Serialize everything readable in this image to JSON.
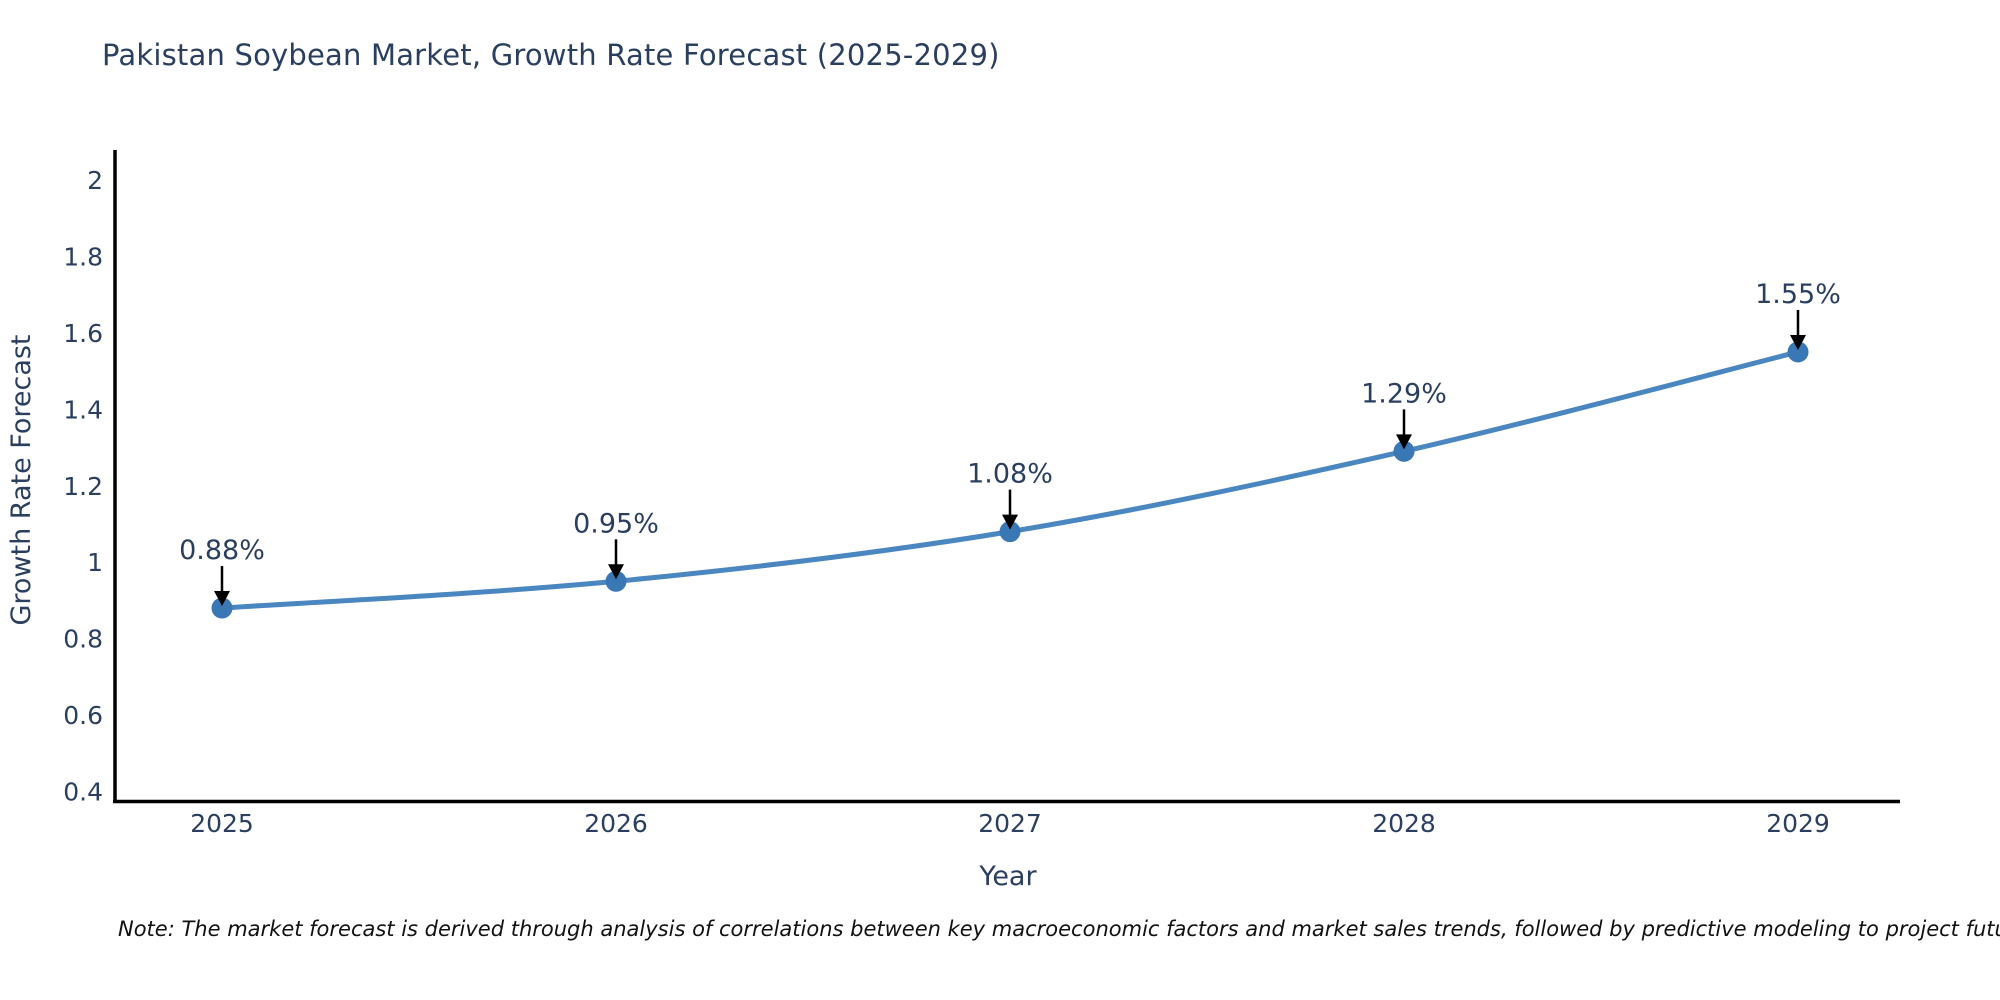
{
  "page": {
    "background": "#ffffff"
  },
  "title": {
    "text": "Pakistan Soybean Market, Growth Rate Forecast (2025-2029)",
    "color": "#2a3f5f"
  },
  "note": {
    "text": "Note: The market forecast is derived through analysis of correlations between key macroeconomic factors and market sales trends, followed by predictive modeling to project future sales"
  },
  "chart_data": {
    "type": "line",
    "title": "Pakistan Soybean Market, Growth Rate Forecast (2025-2029)",
    "x": [
      "2025",
      "2026",
      "2027",
      "2028",
      "2029"
    ],
    "values": [
      0.88,
      0.95,
      1.08,
      1.29,
      1.55
    ],
    "point_labels": [
      "0.88%",
      "0.95%",
      "1.08%",
      "1.29%",
      "1.55%"
    ],
    "xlabel": "Year",
    "ylabel": "Growth Rate Forecast",
    "ylim": [
      0.4,
      2
    ],
    "yticks": [
      0.4,
      0.6,
      0.8,
      1,
      1.2,
      1.4,
      1.6,
      1.8,
      2
    ],
    "grid": false,
    "legend": "none",
    "colors": {
      "line": "#4a86bf",
      "marker": "#3a78b5",
      "axis": "#000000",
      "tick_labels": "#2a3f5f",
      "axis_titles": "#2a3f5f",
      "annotation_text": "#2a3f5f",
      "annotation_arrow": "#000000"
    }
  }
}
